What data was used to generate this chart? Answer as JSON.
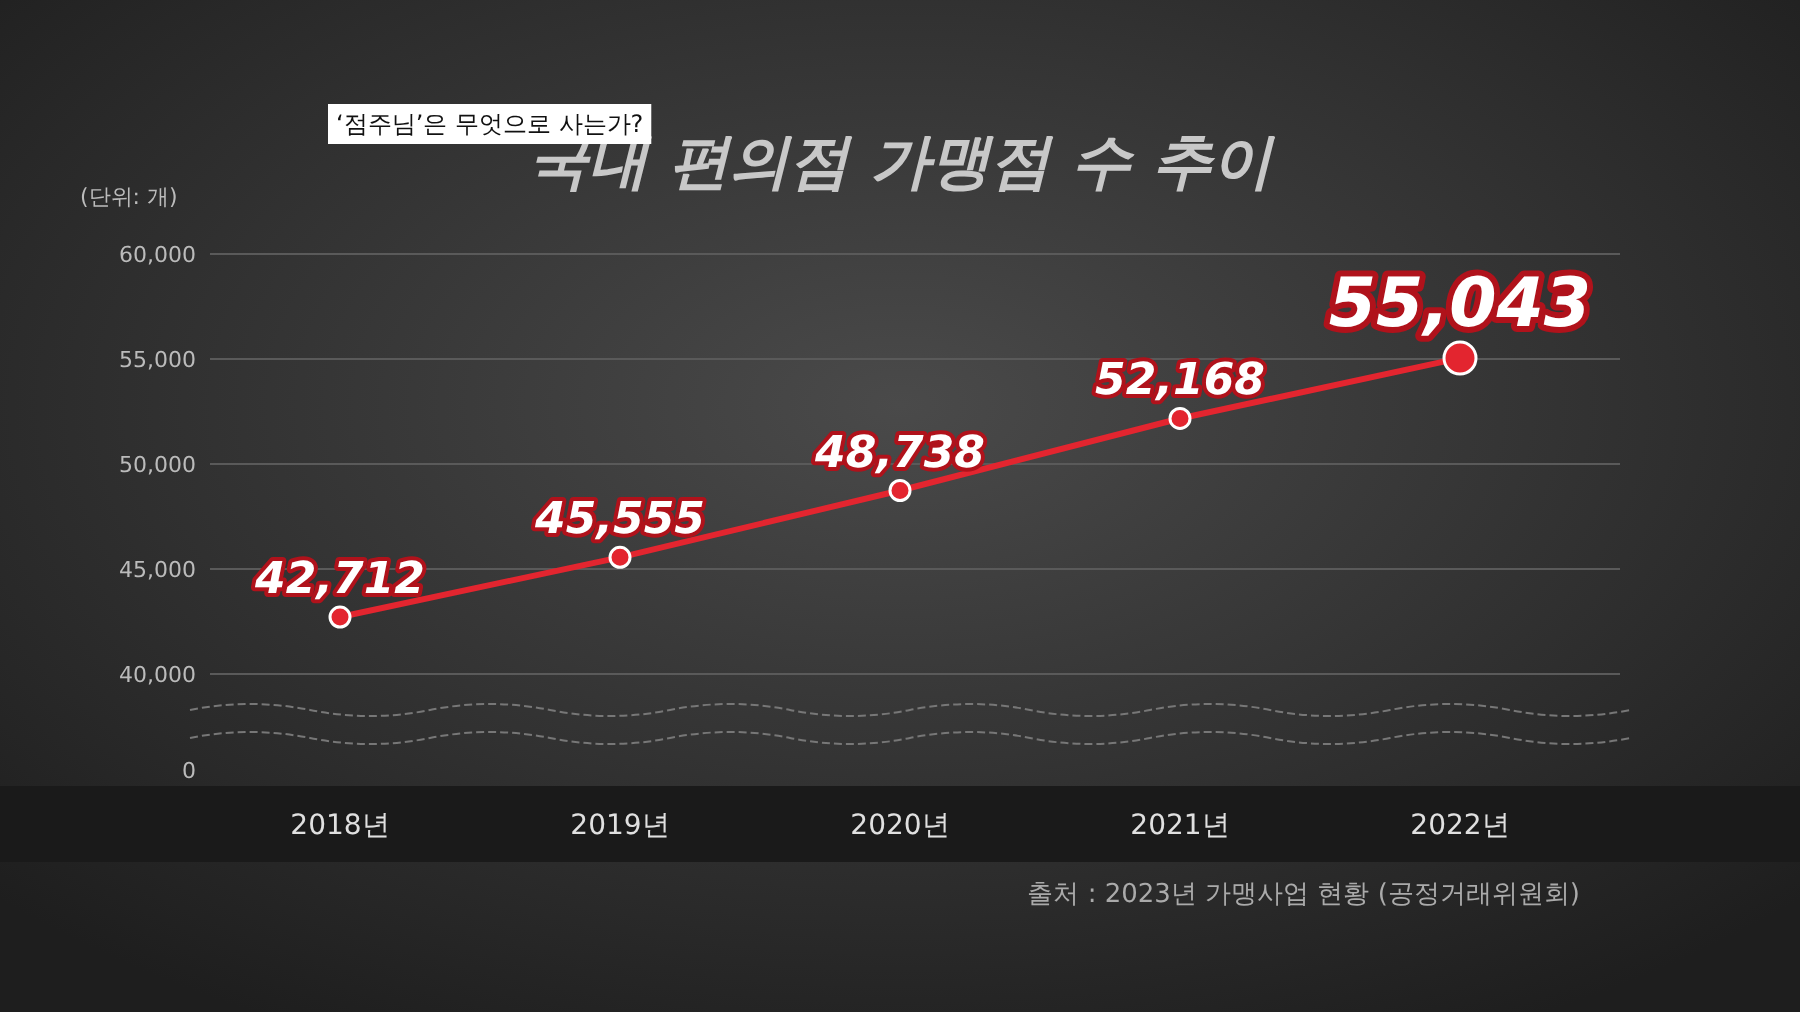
{
  "chart_data": {
    "type": "line",
    "title": "국내 편의점 가맹점 수 추이",
    "subtitle": "‘점주님’은 무엇으로 사는가?",
    "ylabel": "(단위: 개)",
    "categories": [
      "2018년",
      "2019년",
      "2020년",
      "2021년",
      "2022년"
    ],
    "series": [
      {
        "color": "#e3252f",
        "values": [
          42712,
          45555,
          48738,
          52168,
          55043
        ],
        "value_labels": [
          "42,712",
          "45,555",
          "48,738",
          "52,168",
          "55,043"
        ]
      }
    ],
    "ylim": [
      40000,
      60000
    ],
    "yticks": [
      {
        "value": 40000,
        "label": "40,000"
      },
      {
        "value": 45000,
        "label": "45,000"
      },
      {
        "value": 50000,
        "label": "50,000"
      },
      {
        "value": 55000,
        "label": "55,000"
      },
      {
        "value": 60000,
        "label": "60,000"
      }
    ],
    "grid": "y",
    "marker": "circle",
    "annotations": [
      "0",
      "출처 : 2023년 가맹사업 현황 (공정거래위원회)"
    ]
  }
}
